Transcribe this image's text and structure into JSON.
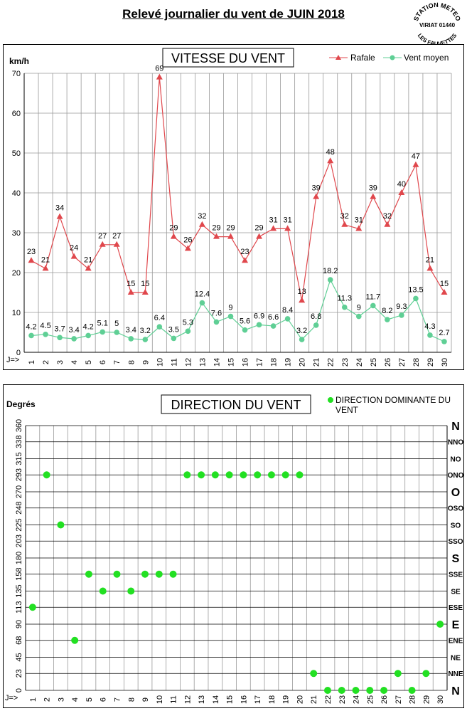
{
  "page": {
    "title": "Relevé journalier du vent de JUIN 2018",
    "stamp": {
      "top": "STATION METEO",
      "middle": "VIRIAT 01440",
      "bottom": "LES FAUVETTES"
    }
  },
  "colors": {
    "rafale": "#e0474c",
    "moyen": "#5fcf95",
    "direction": "#22e022",
    "grid": "#000000"
  },
  "chart_data": [
    {
      "type": "line",
      "title": "VITESSE DU VENT",
      "ylabel": "km/h",
      "xlabel_prefix": "J=>",
      "x": [
        1,
        2,
        3,
        4,
        5,
        6,
        7,
        8,
        9,
        10,
        11,
        12,
        13,
        14,
        15,
        16,
        17,
        18,
        19,
        20,
        21,
        22,
        23,
        24,
        25,
        26,
        27,
        28,
        29,
        30
      ],
      "ylim": [
        0,
        70
      ],
      "yticks": [
        0,
        10,
        20,
        30,
        40,
        50,
        60,
        70
      ],
      "legend_position": "top-right",
      "series": [
        {
          "name": "Rafale",
          "values": [
            23,
            21,
            34,
            24,
            21,
            27,
            27,
            15,
            15,
            69,
            29,
            26,
            32,
            29,
            29,
            23,
            29,
            31,
            31,
            13,
            39,
            48,
            32,
            31,
            39,
            32,
            40,
            47,
            21,
            15
          ]
        },
        {
          "name": "Vent moyen",
          "values": [
            4.2,
            4.5,
            3.7,
            3.4,
            4.2,
            5.1,
            5,
            3.4,
            3.2,
            6.4,
            3.5,
            5.3,
            12.4,
            7.6,
            9,
            5.6,
            6.9,
            6.6,
            8.4,
            3.2,
            6.8,
            18.2,
            11.3,
            9,
            11.7,
            8.2,
            9.3,
            13.5,
            4.3,
            2.7
          ]
        }
      ]
    },
    {
      "type": "scatter",
      "title": "DIRECTION DU VENT",
      "ylabel": "Degrés",
      "xlabel_prefix": "J=>",
      "x": [
        1,
        2,
        3,
        4,
        5,
        6,
        7,
        8,
        9,
        10,
        11,
        12,
        13,
        14,
        15,
        16,
        17,
        18,
        19,
        20,
        21,
        22,
        23,
        24,
        25,
        26,
        27,
        28,
        29,
        30
      ],
      "ylim": [
        0,
        360
      ],
      "yticks": [
        0,
        23,
        45,
        68,
        90,
        113,
        135,
        158,
        180,
        203,
        225,
        248,
        270,
        293,
        315,
        338,
        360
      ],
      "compass_labels": [
        "N",
        "NNE",
        "NE",
        "ENE",
        "E",
        "ESE",
        "SE",
        "SSE",
        "S",
        "SSO",
        "SO",
        "OSO",
        "O",
        "ONO",
        "NO",
        "NNO",
        "N"
      ],
      "legend_position": "top-right",
      "series": [
        {
          "name": "DIRECTION DOMINANTE DU VENT",
          "values": [
            113,
            293,
            225,
            68,
            158,
            135,
            158,
            135,
            158,
            158,
            158,
            293,
            293,
            293,
            293,
            293,
            293,
            293,
            293,
            293,
            23,
            0,
            0,
            0,
            0,
            0,
            23,
            0,
            23,
            90
          ]
        }
      ]
    }
  ]
}
